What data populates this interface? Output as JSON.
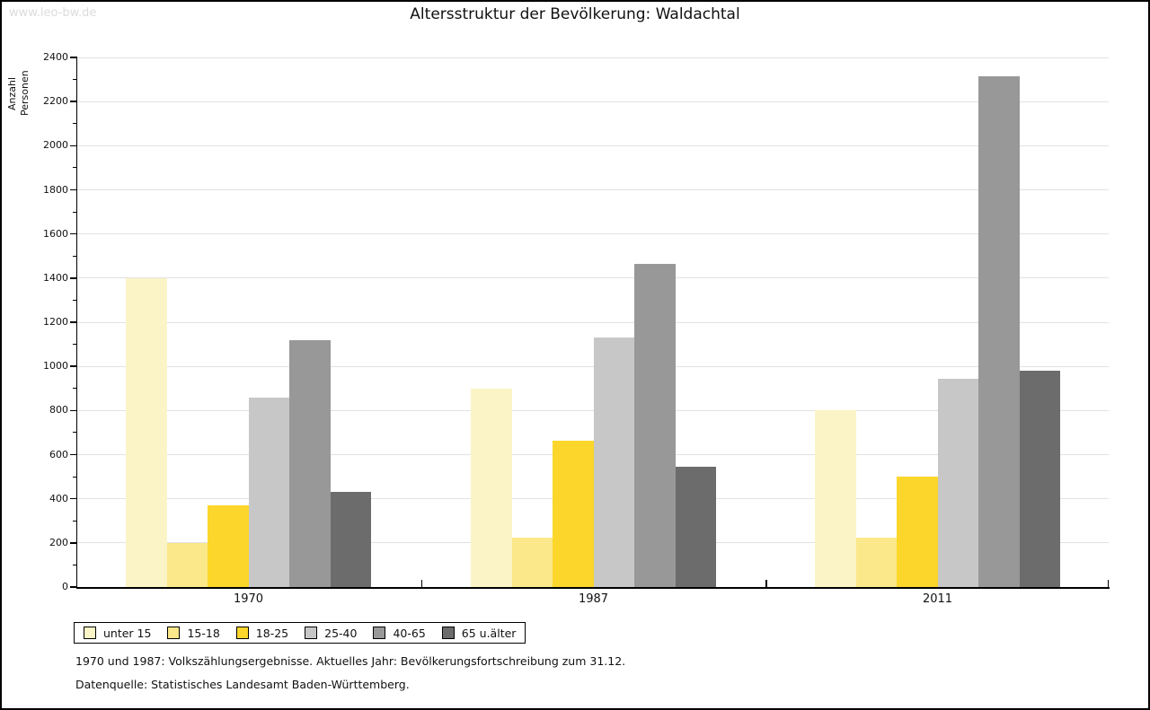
{
  "watermark": "www.leo-bw.de",
  "title": "Altersstruktur der Bevölkerung: Waldachtal",
  "footnotes": [
    "1970 und 1987: Volkszählungsergebnisse. Aktuelles Jahr: Bevölkerungsfortschreibung zum 31.12.",
    "Datenquelle: Statistisches Landesamt Baden-Württemberg."
  ],
  "chart_data": {
    "type": "bar",
    "title": "Altersstruktur der Bevölkerung: Waldachtal",
    "xlabel": "",
    "ylabel": "Anzahl Personen",
    "categories": [
      "1970",
      "1987",
      "2011"
    ],
    "series": [
      {
        "name": "unter 15",
        "color": "#FBF4C6",
        "values": [
          1400,
          900,
          800
        ]
      },
      {
        "name": "15-18",
        "color": "#FBE88A",
        "values": [
          200,
          225,
          225
        ]
      },
      {
        "name": "18-25",
        "color": "#FCD62B",
        "values": [
          370,
          665,
          500
        ]
      },
      {
        "name": "25-40",
        "color": "#C7C7C7",
        "values": [
          860,
          1130,
          945
        ]
      },
      {
        "name": "40-65",
        "color": "#989898",
        "values": [
          1120,
          1465,
          2315
        ]
      },
      {
        "name": "65 u.älter",
        "color": "#6C6C6C",
        "values": [
          430,
          545,
          980
        ]
      }
    ],
    "ylim": [
      0,
      2400
    ],
    "yticks": [
      0,
      200,
      400,
      600,
      800,
      1000,
      1200,
      1400,
      1600,
      1800,
      2000,
      2200,
      2400
    ],
    "minor_tick_step": 100,
    "grid": true,
    "legend_position": "bottom-left",
    "gridline_color": "#E2E2E2"
  }
}
